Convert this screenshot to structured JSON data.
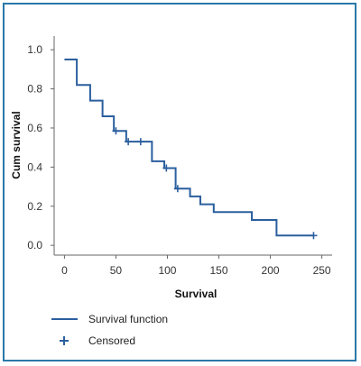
{
  "chart_data": {
    "type": "line",
    "xlabel": "Survival",
    "ylabel": "Cum survival",
    "xlim": [
      -10,
      260
    ],
    "ylim": [
      -0.05,
      1.07
    ],
    "x_ticks": [
      0,
      50,
      100,
      150,
      200,
      250
    ],
    "y_ticks": [
      0.0,
      0.2,
      0.4,
      0.6,
      0.8,
      1.0
    ],
    "x_tick_labels": [
      "0",
      "50",
      "100",
      "150",
      "200",
      "250"
    ],
    "y_tick_labels": [
      "0.0",
      "0.2",
      "0.4",
      "0.6",
      "0.8",
      "1.0"
    ],
    "grid": false,
    "legend_position": "bottom-left",
    "series": [
      {
        "name": "Survival function",
        "step": true,
        "x": [
          0,
          12,
          25,
          37,
          48,
          60,
          85,
          97,
          108,
          122,
          132,
          145,
          182,
          206,
          242
        ],
        "y": [
          0.95,
          0.82,
          0.74,
          0.66,
          0.585,
          0.53,
          0.43,
          0.395,
          0.29,
          0.25,
          0.21,
          0.17,
          0.13,
          0.05,
          0.05
        ]
      },
      {
        "name": "Censored",
        "marker": "plus",
        "x": [
          50,
          62,
          74,
          99,
          110,
          242
        ],
        "y": [
          0.585,
          0.53,
          0.53,
          0.395,
          0.29,
          0.05
        ]
      }
    ],
    "color": "#2b5f9e"
  },
  "legend": {
    "survival_label": "Survival function",
    "censored_label": "Censored"
  }
}
